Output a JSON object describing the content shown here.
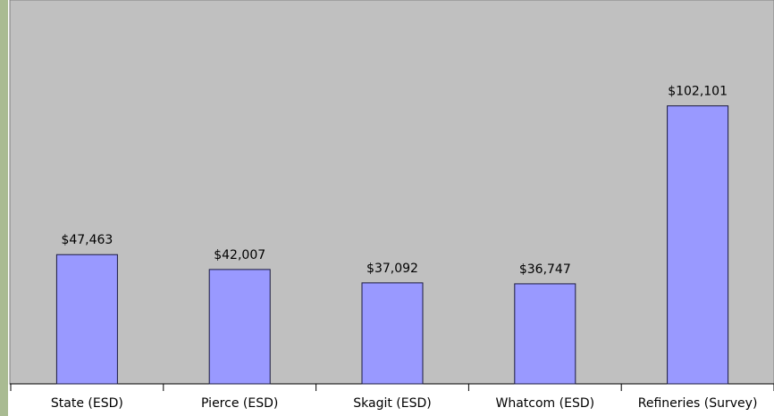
{
  "chart_data": {
    "type": "bar",
    "categories": [
      "State (ESD)",
      "Pierce (ESD)",
      "Skagit (ESD)",
      "Whatcom (ESD)",
      "Refineries (Survey)"
    ],
    "values": [
      47463,
      42007,
      37092,
      36747,
      102101
    ],
    "value_labels": [
      "$47,463",
      "$42,007",
      "$37,092",
      "$36,747",
      "$102,101"
    ],
    "color": "#9999ff",
    "ylim": [
      0,
      140000
    ]
  }
}
